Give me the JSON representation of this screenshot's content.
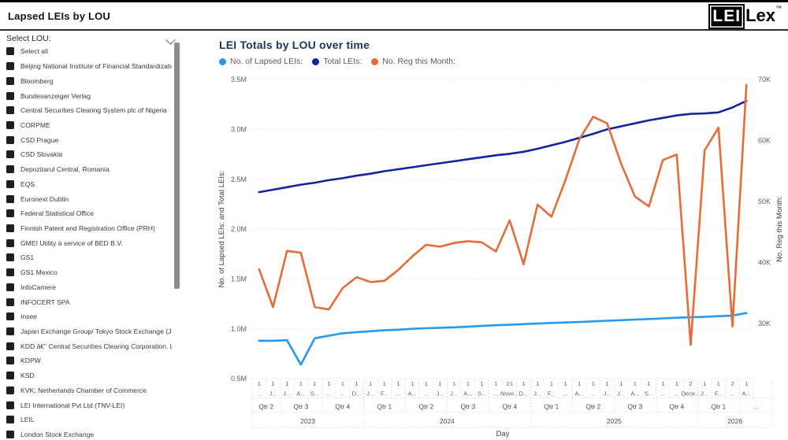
{
  "header": {
    "title": "Lapsed LEIs by LOU",
    "logo_lei": "LEI",
    "logo_lex": "Lex",
    "logo_tm": "™"
  },
  "sidebar": {
    "label": "Select LOU:",
    "chevron_icon": "chevron-down",
    "items": [
      "Select all",
      "Beijing National Institute of Financial Standardizatio...",
      "Bloomberg",
      "Bundesanzeiger Verlag",
      "Central Securities Clearing System plc of Nigeria",
      "CORPME",
      "CSD Prague",
      "CSD Slovakia",
      "Depozitarul Central, Romania",
      "EQS",
      "Euronext Dublin",
      "Federal Statistical Office",
      "Finnish Patent and Registration Office (PRH)",
      "GMEI Utility a service of BED B.V.",
      "GS1",
      "GS1 Mexico",
      "InfoCamere",
      "INFOCERT SPA",
      "Insee",
      "Japan Exchange Group/ Tokyo Stock Exchange (JPX/...",
      "KDD â€“ Central Securities Clearing Corporation, LLC",
      "KDPW",
      "KSD",
      "KVK; Netherlands Chamber of Commerce",
      "LEI International Pvt Ltd (TNV-LEI)",
      "LEIL",
      "London Stock Exchange"
    ]
  },
  "chart": {
    "title": "LEI Totals by LOU over time"
  },
  "chart_data": {
    "type": "line",
    "title": "LEI Totals by LOU over time",
    "x_axis_title": "Day",
    "legend_position": "top",
    "grid": "horizontal-dotted",
    "y_left": {
      "title": "No. of Lapsed LEIs: and Total LEIs:",
      "ticks": [
        "3.5M",
        "3.0M",
        "2.5M",
        "2.0M",
        "1.5M",
        "1.0M",
        "0.5M"
      ],
      "max": 3.5,
      "min": 0.5,
      "unit": "millions"
    },
    "y_right": {
      "title": "No. Reg this Month:",
      "ticks": [
        "70K",
        "60K",
        "50K",
        "40K",
        "30K"
      ],
      "max": 70,
      "min_tick": 30,
      "min_tick_frac": 0.8158,
      "unit": "thousands"
    },
    "x": {
      "days": [
        "1",
        "1",
        "1",
        "1",
        "1",
        "1",
        "1",
        "1",
        "1",
        "1",
        "1",
        "1",
        "1",
        "1",
        "1",
        "1",
        "1",
        "1",
        "21",
        "1",
        "1",
        "1",
        "1",
        "1",
        "1",
        "1",
        "1",
        "1",
        "1",
        "1",
        "1",
        "2",
        "1",
        "1",
        "2",
        "1"
      ],
      "months": [
        "...",
        "J...",
        "J...",
        "A...",
        "S...",
        "...",
        "...",
        "D...",
        "J...",
        "F...",
        "...",
        "A...",
        "...",
        "J...",
        "J...",
        "A...",
        "S...",
        "...",
        "Nove...",
        "D...",
        "J...",
        "F...",
        "...",
        "A...",
        "...",
        "J...",
        "J...",
        "A...",
        "S...",
        "...",
        "...",
        "Dece...",
        "J...",
        "F...",
        "...",
        "A..."
      ],
      "quarters": [
        {
          "label": "Qtr 2",
          "span": 2
        },
        {
          "label": "Qtr 3",
          "span": 3
        },
        {
          "label": "Qtr 4",
          "span": 3
        },
        {
          "label": "Qtr 1",
          "span": 3
        },
        {
          "label": "Qtr 2",
          "span": 3
        },
        {
          "label": "Qtr 3",
          "span": 3
        },
        {
          "label": "Qtr 4",
          "span": 3
        },
        {
          "label": "Qtr 1",
          "span": 3
        },
        {
          "label": "Qtr 2",
          "span": 3
        },
        {
          "label": "Qtr 3",
          "span": 3
        },
        {
          "label": "Qtr 4",
          "span": 3
        },
        {
          "label": "Qtr 1",
          "span": 3
        },
        {
          "label": "...",
          "span": 1
        }
      ],
      "years": [
        {
          "label": "2023",
          "span": 8
        },
        {
          "label": "2024",
          "span": 12
        },
        {
          "label": "2025",
          "span": 12
        },
        {
          "label": "2026",
          "span": 4
        }
      ]
    },
    "series": [
      {
        "name": "No. of Lapsed LEIs:",
        "color": "#2499F2",
        "axis": "left",
        "unit": "M",
        "values": [
          0.88,
          0.88,
          0.885,
          0.64,
          0.905,
          0.93,
          0.955,
          0.965,
          0.975,
          0.985,
          0.99,
          1.0,
          1.005,
          1.01,
          1.015,
          1.02,
          1.028,
          1.035,
          1.04,
          1.046,
          1.052,
          1.058,
          1.063,
          1.068,
          1.074,
          1.08,
          1.086,
          1.092,
          1.098,
          1.104,
          1.11,
          1.115,
          1.12,
          1.126,
          1.132,
          1.158
        ]
      },
      {
        "name": "Total LEIs:",
        "color": "#12239E",
        "axis": "left",
        "unit": "M",
        "values": [
          2.37,
          2.395,
          2.42,
          2.445,
          2.465,
          2.49,
          2.51,
          2.535,
          2.555,
          2.58,
          2.6,
          2.62,
          2.64,
          2.66,
          2.68,
          2.7,
          2.72,
          2.74,
          2.755,
          2.775,
          2.805,
          2.84,
          2.875,
          2.915,
          2.955,
          3.0,
          3.03,
          3.06,
          3.09,
          3.115,
          3.14,
          3.155,
          3.16,
          3.17,
          3.22,
          3.285
        ]
      },
      {
        "name": "No. Reg this Month:",
        "color": "#E66C37",
        "axis": "right",
        "unit": "K",
        "values": [
          38.9,
          32.7,
          41.9,
          41.6,
          32.7,
          32.3,
          35.8,
          37.6,
          36.8,
          37.0,
          38.8,
          41.0,
          42.9,
          42.6,
          43.2,
          43.5,
          43.3,
          41.8,
          46.9,
          39.7,
          49.5,
          47.5,
          53.5,
          60.2,
          63.9,
          62.8,
          56.2,
          50.8,
          49.2,
          56.8,
          57.7,
          26.5,
          58.4,
          62.1,
          29.5,
          69.1
        ]
      }
    ]
  }
}
